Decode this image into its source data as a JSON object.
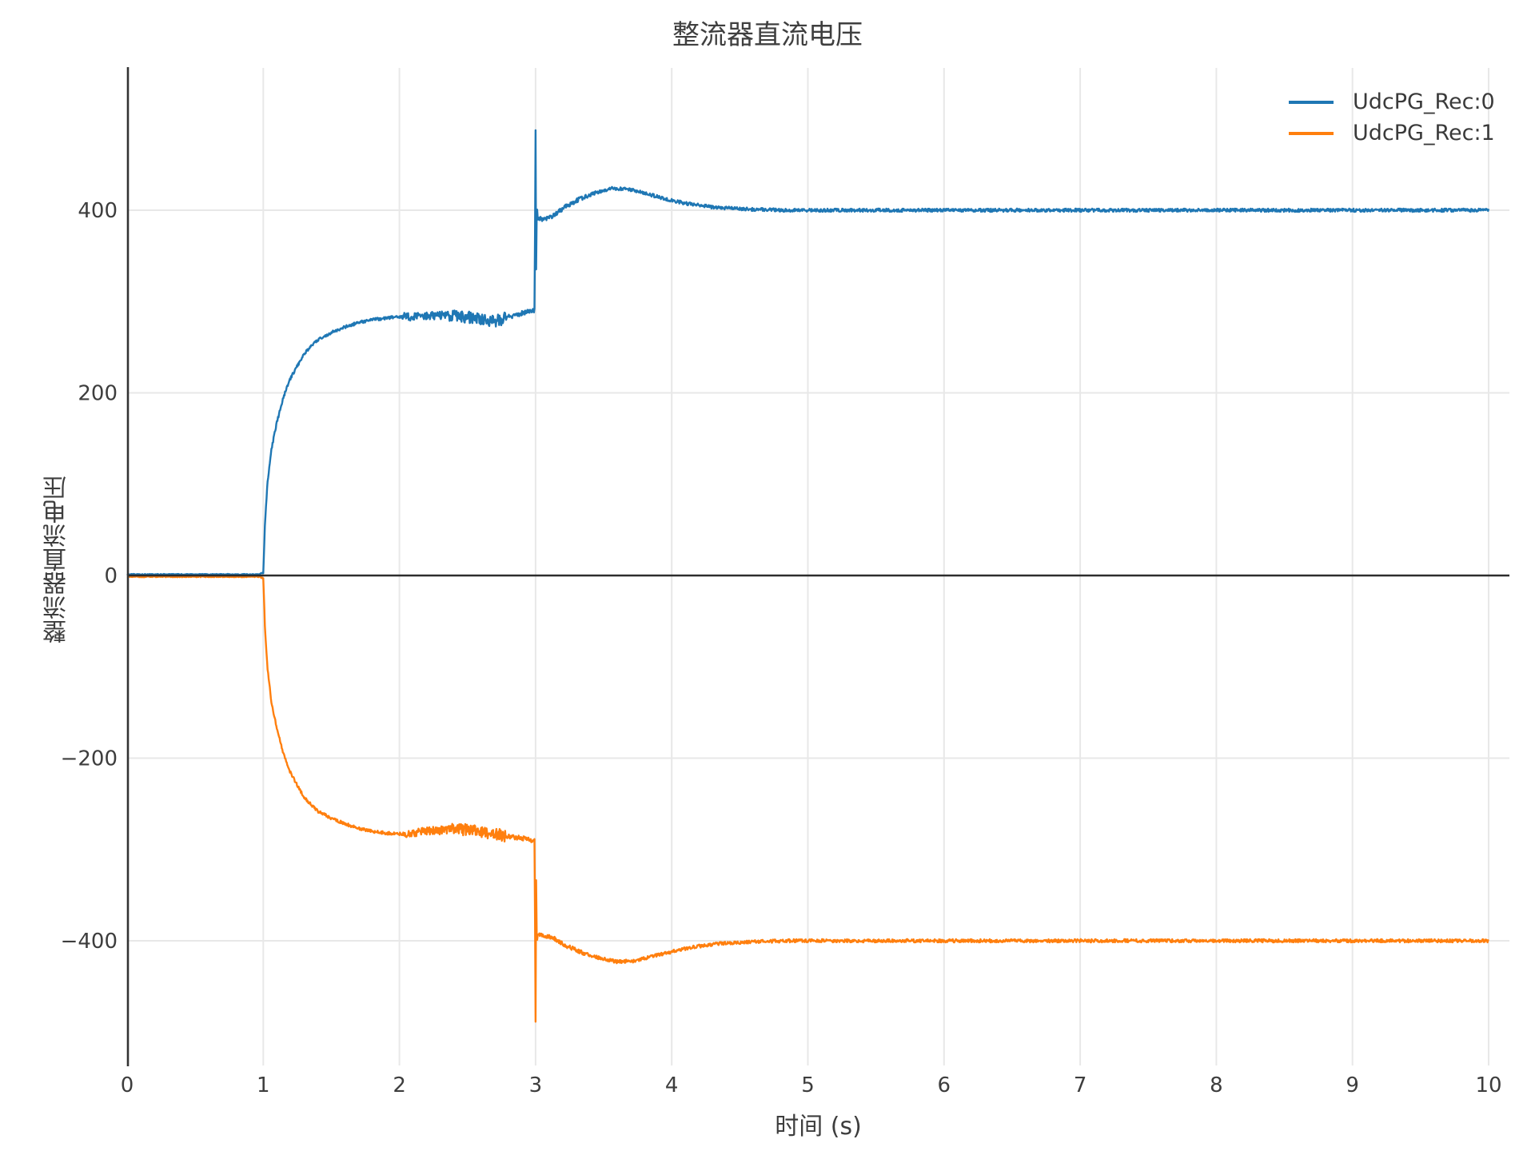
{
  "chart_data": {
    "type": "line",
    "title": "整流器直流电压",
    "x_axis": {
      "label": "时间 (s)",
      "range": [
        0,
        10
      ],
      "tick_values": [
        0,
        1,
        2,
        3,
        4,
        5,
        6,
        7,
        8,
        9,
        10
      ],
      "tick_labels": [
        "0",
        "1",
        "2",
        "3",
        "4",
        "5",
        "6",
        "7",
        "8",
        "9",
        "10"
      ]
    },
    "y_axis": {
      "label": "整流器直流电压",
      "range": [
        -545,
        556
      ],
      "tick_values": [
        400,
        200,
        0,
        -200,
        -400
      ],
      "tick_labels": [
        "400",
        "200",
        "0",
        "−200",
        "−400"
      ]
    },
    "grid": true,
    "zero_line": true,
    "legend": {
      "position": "top-right",
      "entries": [
        {
          "label": "UdcPG_Rec:0",
          "color": "#1f77b4"
        },
        {
          "label": "UdcPG_Rec:1",
          "color": "#ff7f0e"
        }
      ]
    },
    "sample_step": 0.004,
    "series": [
      {
        "name": "UdcPG_Rec:0",
        "color": "#1f77b4",
        "keypoints": [
          [
            0,
            1.2
          ],
          [
            0.975,
            1.2
          ],
          [
            1.0,
            3
          ],
          [
            1.012,
            55
          ],
          [
            1.03,
            100
          ],
          [
            1.06,
            138
          ],
          [
            1.1,
            168
          ],
          [
            1.15,
            196
          ],
          [
            1.2,
            216
          ],
          [
            1.3,
            243
          ],
          [
            1.4,
            258
          ],
          [
            1.5,
            266
          ],
          [
            1.6,
            272
          ],
          [
            1.7,
            277
          ],
          [
            1.8,
            280
          ],
          [
            1.9,
            282
          ],
          [
            2.0,
            283
          ],
          [
            2.15,
            284
          ],
          [
            2.3,
            285
          ],
          [
            2.45,
            284
          ],
          [
            2.58,
            281
          ],
          [
            2.7,
            278
          ],
          [
            2.82,
            284
          ],
          [
            2.92,
            288
          ],
          [
            2.993,
            290
          ],
          [
            3.0,
            489
          ],
          [
            3.004,
            335
          ],
          [
            3.009,
            408
          ],
          [
            3.015,
            391
          ],
          [
            3.06,
            390
          ],
          [
            3.12,
            393
          ],
          [
            3.22,
            404
          ],
          [
            3.32,
            412
          ],
          [
            3.44,
            419
          ],
          [
            3.56,
            424
          ],
          [
            3.68,
            423
          ],
          [
            3.82,
            418
          ],
          [
            3.96,
            412
          ],
          [
            4.12,
            407
          ],
          [
            4.32,
            403
          ],
          [
            4.6,
            401
          ],
          [
            4.85,
            400
          ],
          [
            10,
            400
          ]
        ],
        "noise": [
          [
            0,
            0.97,
            0.5
          ],
          [
            0.97,
            1.05,
            1.0
          ],
          [
            1.05,
            2.02,
            1.6
          ],
          [
            2.02,
            2.35,
            4.5
          ],
          [
            2.35,
            2.78,
            6.5
          ],
          [
            2.78,
            2.995,
            2.5
          ],
          [
            2.995,
            3.03,
            2.0
          ],
          [
            3.03,
            3.4,
            2.3
          ],
          [
            3.4,
            10.01,
            1.8
          ]
        ]
      },
      {
        "name": "UdcPG_Rec:1",
        "color": "#ff7f0e",
        "keypoints": [
          [
            0,
            -1.4
          ],
          [
            0.975,
            -1.4
          ],
          [
            1.0,
            -3
          ],
          [
            1.012,
            -55
          ],
          [
            1.03,
            -100
          ],
          [
            1.06,
            -138
          ],
          [
            1.1,
            -168
          ],
          [
            1.15,
            -196
          ],
          [
            1.2,
            -216
          ],
          [
            1.3,
            -243
          ],
          [
            1.4,
            -258
          ],
          [
            1.5,
            -266
          ],
          [
            1.6,
            -272
          ],
          [
            1.7,
            -277
          ],
          [
            1.8,
            -280
          ],
          [
            1.9,
            -282
          ],
          [
            2.0,
            -283
          ],
          [
            2.15,
            -281
          ],
          [
            2.3,
            -279
          ],
          [
            2.45,
            -278
          ],
          [
            2.58,
            -280
          ],
          [
            2.7,
            -283
          ],
          [
            2.82,
            -286
          ],
          [
            2.92,
            -288
          ],
          [
            2.993,
            -291
          ],
          [
            3.0,
            -487
          ],
          [
            3.004,
            -333
          ],
          [
            3.009,
            -405
          ],
          [
            3.015,
            -393
          ],
          [
            3.06,
            -394
          ],
          [
            3.12,
            -396
          ],
          [
            3.22,
            -405
          ],
          [
            3.32,
            -412
          ],
          [
            3.45,
            -418
          ],
          [
            3.6,
            -423
          ],
          [
            3.72,
            -422
          ],
          [
            3.86,
            -417
          ],
          [
            4.0,
            -412
          ],
          [
            4.15,
            -407
          ],
          [
            4.35,
            -403
          ],
          [
            4.6,
            -401
          ],
          [
            4.85,
            -400
          ],
          [
            10,
            -400
          ]
        ],
        "noise": [
          [
            0,
            0.97,
            0.5
          ],
          [
            0.97,
            1.05,
            1.0
          ],
          [
            1.05,
            2.02,
            1.6
          ],
          [
            2.02,
            2.35,
            4.5
          ],
          [
            2.35,
            2.78,
            6.5
          ],
          [
            2.78,
            2.995,
            2.5
          ],
          [
            2.995,
            3.03,
            2.0
          ],
          [
            3.03,
            3.4,
            2.3
          ],
          [
            3.4,
            10.01,
            1.8
          ]
        ]
      }
    ]
  }
}
